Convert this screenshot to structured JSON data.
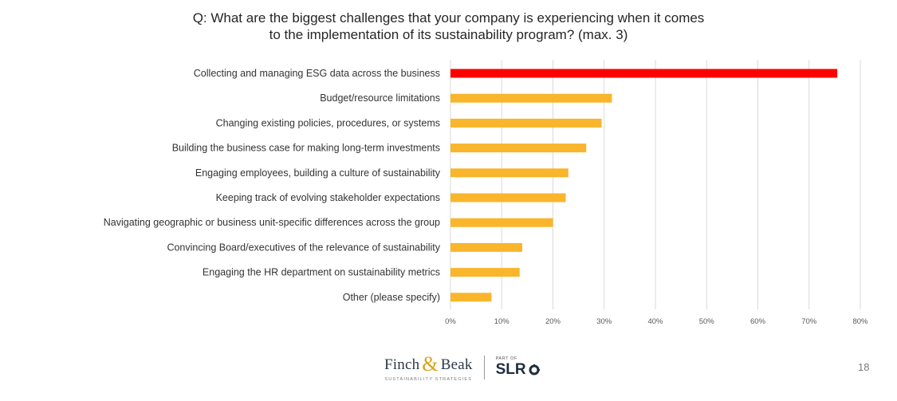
{
  "title": {
    "line1": "Q: What are the biggest challenges that your company is experiencing when it comes",
    "line2": "to the implementation of its sustainability program? (max. 3)"
  },
  "chart_data": {
    "type": "bar",
    "orientation": "horizontal",
    "categories": [
      "Collecting and managing ESG data across the business",
      "Budget/resource limitations",
      "Changing existing policies, procedures, or systems",
      "Building the business case for making long-term investments",
      "Engaging employees, building a culture of sustainability",
      "Keeping track of evolving stakeholder expectations",
      "Navigating geographic or business unit-specific differences across the group",
      "Convincing Board/executives of the relevance of sustainability",
      "Engaging the HR department on sustainability metrics",
      "Other (please specify)"
    ],
    "values": [
      75.5,
      31.5,
      29.5,
      26.5,
      23,
      22.5,
      20,
      14,
      13.5,
      8
    ],
    "xlim": [
      0,
      80
    ],
    "ticks": [
      0,
      10,
      20,
      30,
      40,
      50,
      60,
      70,
      80
    ],
    "tick_suffix": "%",
    "grid": true,
    "colors": {
      "highlight": "#ff0000",
      "bar": "#f9b52b",
      "grid": "#d9d9d9"
    }
  },
  "footer": {
    "brand_left": "Finch",
    "brand_amp": "&",
    "brand_right": "Beak",
    "brand_sub": "SUSTAINABILITY STRATEGIES",
    "part_of": "PART OF",
    "partner": "SLR",
    "page_number": "18"
  }
}
